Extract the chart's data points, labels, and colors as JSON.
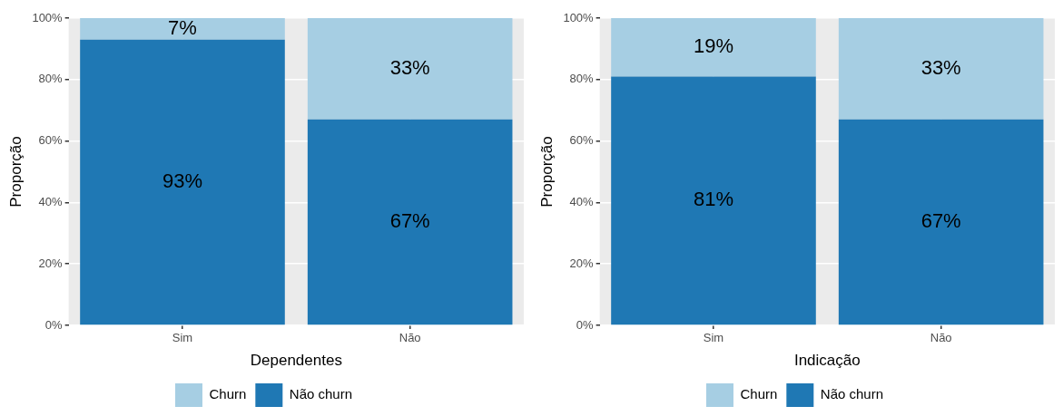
{
  "chart_data": [
    {
      "type": "bar",
      "stacked": true,
      "xlabel": "Dependentes",
      "ylabel": "Proporção",
      "categories": [
        "Sim",
        "Não"
      ],
      "ylim": [
        0,
        100
      ],
      "yticks": [
        {
          "value": 0,
          "label": "0%"
        },
        {
          "value": 20,
          "label": "20%"
        },
        {
          "value": 40,
          "label": "40%"
        },
        {
          "value": 60,
          "label": "60%"
        },
        {
          "value": 80,
          "label": "80%"
        },
        {
          "value": 100,
          "label": "100%"
        }
      ],
      "grid": true,
      "legend": "bottom",
      "series": [
        {
          "name": "Não churn",
          "color": "#1f78b4",
          "values": [
            93,
            67
          ],
          "value_labels": [
            "93%",
            "67%"
          ]
        },
        {
          "name": "Churn",
          "color": "#a6cee3",
          "values": [
            7,
            33
          ],
          "value_labels": [
            "7%",
            "33%"
          ]
        }
      ]
    },
    {
      "type": "bar",
      "stacked": true,
      "xlabel": "Indicação",
      "ylabel": "Proporção",
      "categories": [
        "Sim",
        "Não"
      ],
      "ylim": [
        0,
        100
      ],
      "yticks": [
        {
          "value": 0,
          "label": "0%"
        },
        {
          "value": 20,
          "label": "20%"
        },
        {
          "value": 40,
          "label": "40%"
        },
        {
          "value": 60,
          "label": "60%"
        },
        {
          "value": 80,
          "label": "80%"
        },
        {
          "value": 100,
          "label": "100%"
        }
      ],
      "grid": true,
      "legend": "bottom",
      "series": [
        {
          "name": "Não churn",
          "color": "#1f78b4",
          "values": [
            81,
            67
          ],
          "value_labels": [
            "81%",
            "67%"
          ]
        },
        {
          "name": "Churn",
          "color": "#a6cee3",
          "values": [
            19,
            33
          ],
          "value_labels": [
            "19%",
            "33%"
          ]
        }
      ]
    }
  ]
}
